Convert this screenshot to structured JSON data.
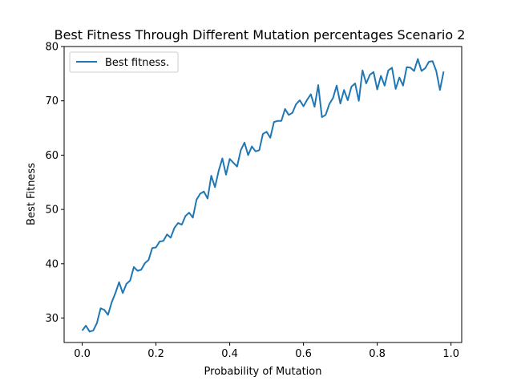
{
  "chart_data": {
    "type": "line",
    "title": "Best Fitness Through Different Mutation  percentages Scenario 2",
    "xlabel": "Probability of Mutation",
    "ylabel": "Best Fitness",
    "xlim": [
      -0.049,
      1.029
    ],
    "ylim": [
      25.5,
      80.0
    ],
    "xticks": [
      0.0,
      0.2,
      0.4,
      0.6,
      0.8,
      1.0
    ],
    "xtick_labels": [
      "0.0",
      "0.2",
      "0.4",
      "0.6",
      "0.8",
      "1.0"
    ],
    "yticks": [
      30,
      40,
      50,
      60,
      70,
      80
    ],
    "ytick_labels": [
      "30",
      "40",
      "50",
      "60",
      "70",
      "80"
    ],
    "grid": false,
    "legend_position": "top-left",
    "series": [
      {
        "name": "Best fitness.",
        "color": "#1f77b4",
        "x": [
          0.0,
          0.01,
          0.02,
          0.03,
          0.04,
          0.05,
          0.06,
          0.07,
          0.08,
          0.09,
          0.1,
          0.11,
          0.12,
          0.13,
          0.14,
          0.15,
          0.16,
          0.17,
          0.18,
          0.19,
          0.2,
          0.21,
          0.22,
          0.23,
          0.24,
          0.25,
          0.26,
          0.27,
          0.28,
          0.29,
          0.3,
          0.31,
          0.32,
          0.33,
          0.34,
          0.35,
          0.36,
          0.37,
          0.38,
          0.39,
          0.4,
          0.41,
          0.42,
          0.43,
          0.44,
          0.45,
          0.46,
          0.47,
          0.48,
          0.49,
          0.5,
          0.51,
          0.52,
          0.53,
          0.54,
          0.55,
          0.56,
          0.57,
          0.58,
          0.59,
          0.6,
          0.61,
          0.62,
          0.63,
          0.64,
          0.65,
          0.66,
          0.67,
          0.68,
          0.69,
          0.7,
          0.71,
          0.72,
          0.73,
          0.74,
          0.75,
          0.76,
          0.77,
          0.78,
          0.79,
          0.8,
          0.81,
          0.82,
          0.83,
          0.84,
          0.85,
          0.86,
          0.87,
          0.88,
          0.89,
          0.9,
          0.91,
          0.92,
          0.93,
          0.94,
          0.95,
          0.96,
          0.97,
          0.98
        ],
        "y": [
          27.7,
          28.6,
          27.5,
          27.7,
          29.1,
          31.8,
          31.5,
          30.6,
          32.9,
          34.6,
          36.6,
          34.6,
          36.3,
          36.9,
          39.4,
          38.7,
          38.9,
          40.1,
          40.7,
          42.9,
          43.0,
          44.1,
          44.2,
          45.4,
          44.8,
          46.6,
          47.5,
          47.2,
          48.8,
          49.4,
          48.5,
          51.8,
          52.9,
          53.3,
          52.0,
          56.2,
          54.1,
          57.1,
          59.4,
          56.4,
          59.3,
          58.6,
          57.9,
          60.9,
          62.3,
          60.0,
          61.6,
          60.7,
          60.9,
          63.9,
          64.3,
          63.2,
          66.1,
          66.3,
          66.3,
          68.5,
          67.4,
          67.8,
          69.4,
          70.1,
          69.0,
          70.2,
          71.2,
          68.9,
          72.9,
          67.0,
          67.4,
          69.4,
          70.5,
          72.8,
          69.5,
          72.0,
          70.1,
          72.6,
          73.2,
          70.0,
          75.6,
          73.2,
          74.8,
          75.3,
          72.1,
          74.6,
          72.8,
          75.6,
          76.1,
          72.2,
          74.3,
          72.8,
          76.2,
          76.1,
          75.5,
          77.7,
          75.5,
          76.0,
          77.2,
          77.3,
          75.5,
          72.0,
          75.4
        ]
      }
    ]
  }
}
